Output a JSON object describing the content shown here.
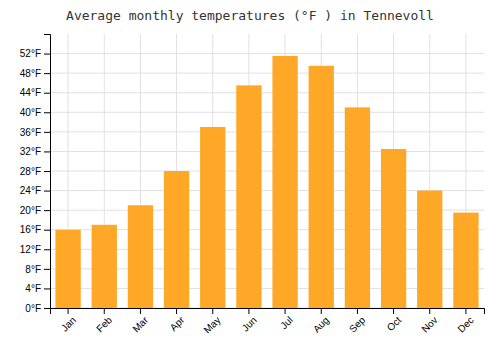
{
  "chart_data": {
    "type": "bar",
    "title": "Average monthly temperatures (°F ) in Tennevoll",
    "categories": [
      "Jan",
      "Feb",
      "Mar",
      "Apr",
      "May",
      "Jun",
      "Jul",
      "Aug",
      "Sep",
      "Oct",
      "Nov",
      "Dec"
    ],
    "values": [
      16.0,
      17.0,
      21.0,
      28.0,
      37.0,
      45.5,
      51.5,
      49.5,
      41.0,
      32.5,
      24.0,
      19.5
    ],
    "color": "#FFA726",
    "ylim": [
      0,
      56
    ],
    "yticks": [
      {
        "value": 0,
        "label": "0°F"
      },
      {
        "value": 4,
        "label": "4°F"
      },
      {
        "value": 8,
        "label": "8°F"
      },
      {
        "value": 12,
        "label": "12°F"
      },
      {
        "value": 16,
        "label": "16°F"
      },
      {
        "value": 20,
        "label": "20°F"
      },
      {
        "value": 24,
        "label": "24°F"
      },
      {
        "value": 28,
        "label": "28°F"
      },
      {
        "value": 32,
        "label": "32°F"
      },
      {
        "value": 36,
        "label": "36°F"
      },
      {
        "value": 40,
        "label": "40°F"
      },
      {
        "value": 44,
        "label": "44°F"
      },
      {
        "value": 48,
        "label": "48°F"
      },
      {
        "value": 52,
        "label": "52°F"
      }
    ],
    "grid": true
  }
}
